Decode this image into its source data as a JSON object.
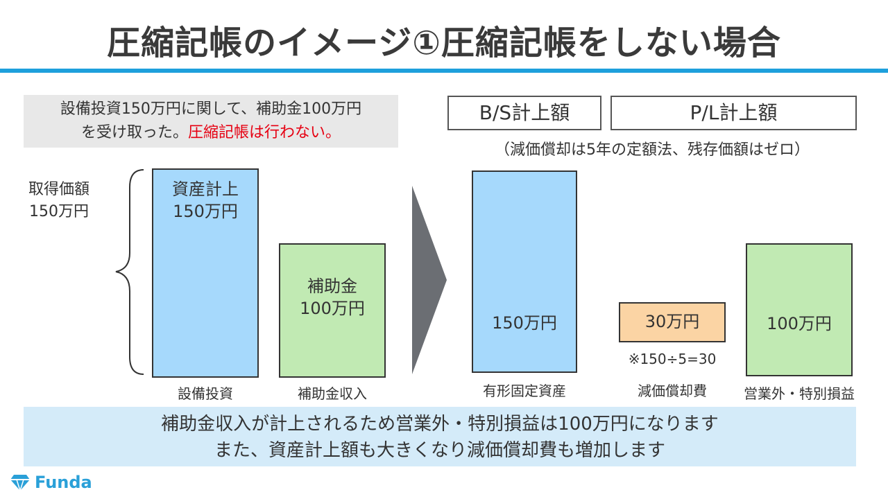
{
  "title": "圧縮記帳のイメージ①圧縮記帳をしない場合",
  "note": {
    "line1": "設備投資150万円に関して、補助金100万円",
    "line2_plain": "を受け取った。",
    "line2_red": "圧縮記帳は行わない。"
  },
  "headers": {
    "bs": "B/S計上額",
    "pl": "P/L計上額",
    "sub": "（減価償却は5年の定額法、残存価額はゼロ）"
  },
  "acquisition": {
    "line1": "取得価額",
    "line2": "150万円"
  },
  "left_bars": [
    {
      "line1": "資産計上",
      "line2": "150万円",
      "label": "設備投資"
    },
    {
      "line1": "補助金",
      "line2": "100万円",
      "label": "補助金収入"
    }
  ],
  "right_bars": [
    {
      "value": "150万円",
      "label": "有形固定資産"
    },
    {
      "value": "30万円",
      "label": "減価償却費",
      "calc": "※150÷5=30"
    },
    {
      "value": "100万円",
      "label": "営業外・特別損益"
    }
  ],
  "summary": {
    "line1": "補助金収入が計上されるため営業外・特別損益は100万円になります",
    "line2": "また、資産計上額も大きくなり減価償却費も増加します"
  },
  "logo": {
    "text": "Funda",
    "icon": "diamond-logo-icon"
  },
  "colors": {
    "accent": "#1ea0dc",
    "blue_bar": "#a6d9fc",
    "green_bar": "#c1eab3",
    "orange_bar": "#fbd4a4",
    "summary_bg": "#d4ebf9",
    "red_text": "#e60012"
  }
}
